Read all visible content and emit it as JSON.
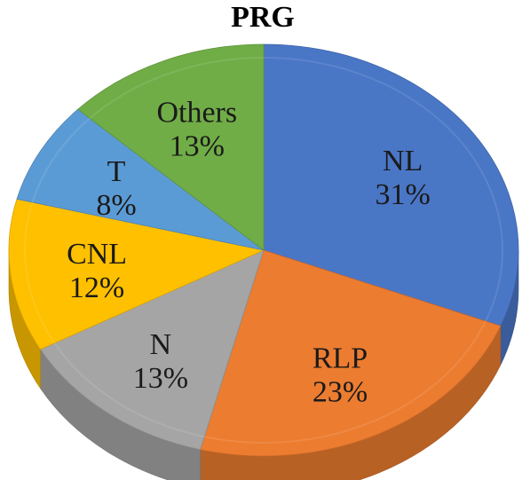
{
  "chart_data": {
    "type": "pie",
    "title": "PRG",
    "categories": [
      "NL",
      "RLP",
      "N",
      "CNL",
      "T",
      "Others"
    ],
    "values": [
      31,
      23,
      13,
      12,
      8,
      13
    ],
    "percent_labels": [
      "31%",
      "23%",
      "13%",
      "12%",
      "8%",
      "13%"
    ],
    "colors": [
      "#4a76c6",
      "#ec7c30",
      "#a5a5a5",
      "#ffc000",
      "#5b9bd5",
      "#70ad47"
    ],
    "style": "3d-tilted",
    "legend": "none"
  }
}
